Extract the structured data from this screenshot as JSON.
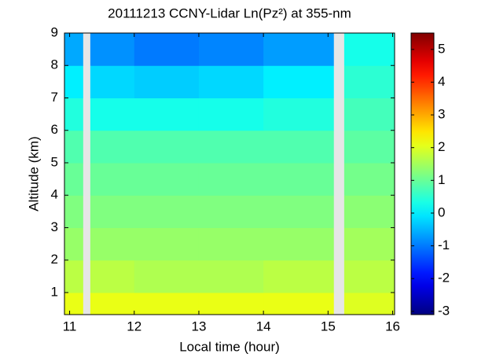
{
  "chart_data": {
    "type": "heatmap",
    "title": "20111213 CCNY-Lidar Ln(Pz²) at 355-nm",
    "x_label": "Local time (hour)",
    "y_label": "Altitude (km)",
    "x_edges": [
      10.92,
      11.21,
      11.32,
      12,
      13,
      14,
      15.09,
      15.25,
      16.03
    ],
    "y_edges": [
      0.32,
      1,
      2,
      3,
      4,
      5,
      6,
      7,
      8,
      9
    ],
    "values": [
      [
        2.1,
        null,
        2.1,
        2.1,
        2.1,
        2.1,
        null,
        2.0
      ],
      [
        1.7,
        null,
        1.7,
        1.6,
        1.6,
        1.7,
        null,
        1.7
      ],
      [
        1.4,
        null,
        1.4,
        1.4,
        1.4,
        1.4,
        null,
        1.5
      ],
      [
        1.2,
        null,
        1.2,
        1.2,
        1.2,
        1.2,
        null,
        1.3
      ],
      [
        1.0,
        null,
        1.0,
        1.0,
        1.0,
        1.0,
        null,
        1.1
      ],
      [
        0.8,
        null,
        0.8,
        0.8,
        0.8,
        0.8,
        null,
        0.9
      ],
      [
        0.4,
        null,
        0.3,
        0.3,
        0.3,
        0.4,
        null,
        0.7
      ],
      [
        0.0,
        null,
        -0.2,
        -0.3,
        -0.2,
        0.0,
        null,
        0.5
      ],
      [
        -0.6,
        null,
        -0.8,
        -1.0,
        -0.9,
        -0.7,
        null,
        0.3
      ]
    ],
    "missing_color": "#e6e6e6",
    "colormap": "jet",
    "xlim": [
      10.92,
      16.03
    ],
    "xticks": [
      11,
      12,
      13,
      14,
      15,
      16
    ],
    "ylim": [
      0.32,
      9
    ],
    "yticks": [
      1,
      2,
      3,
      4,
      5,
      6,
      7,
      8,
      9
    ],
    "clim": [
      -3.1,
      5.5
    ],
    "cticks": [
      -3,
      -2,
      -1,
      0,
      1,
      2,
      3,
      4,
      5
    ]
  }
}
